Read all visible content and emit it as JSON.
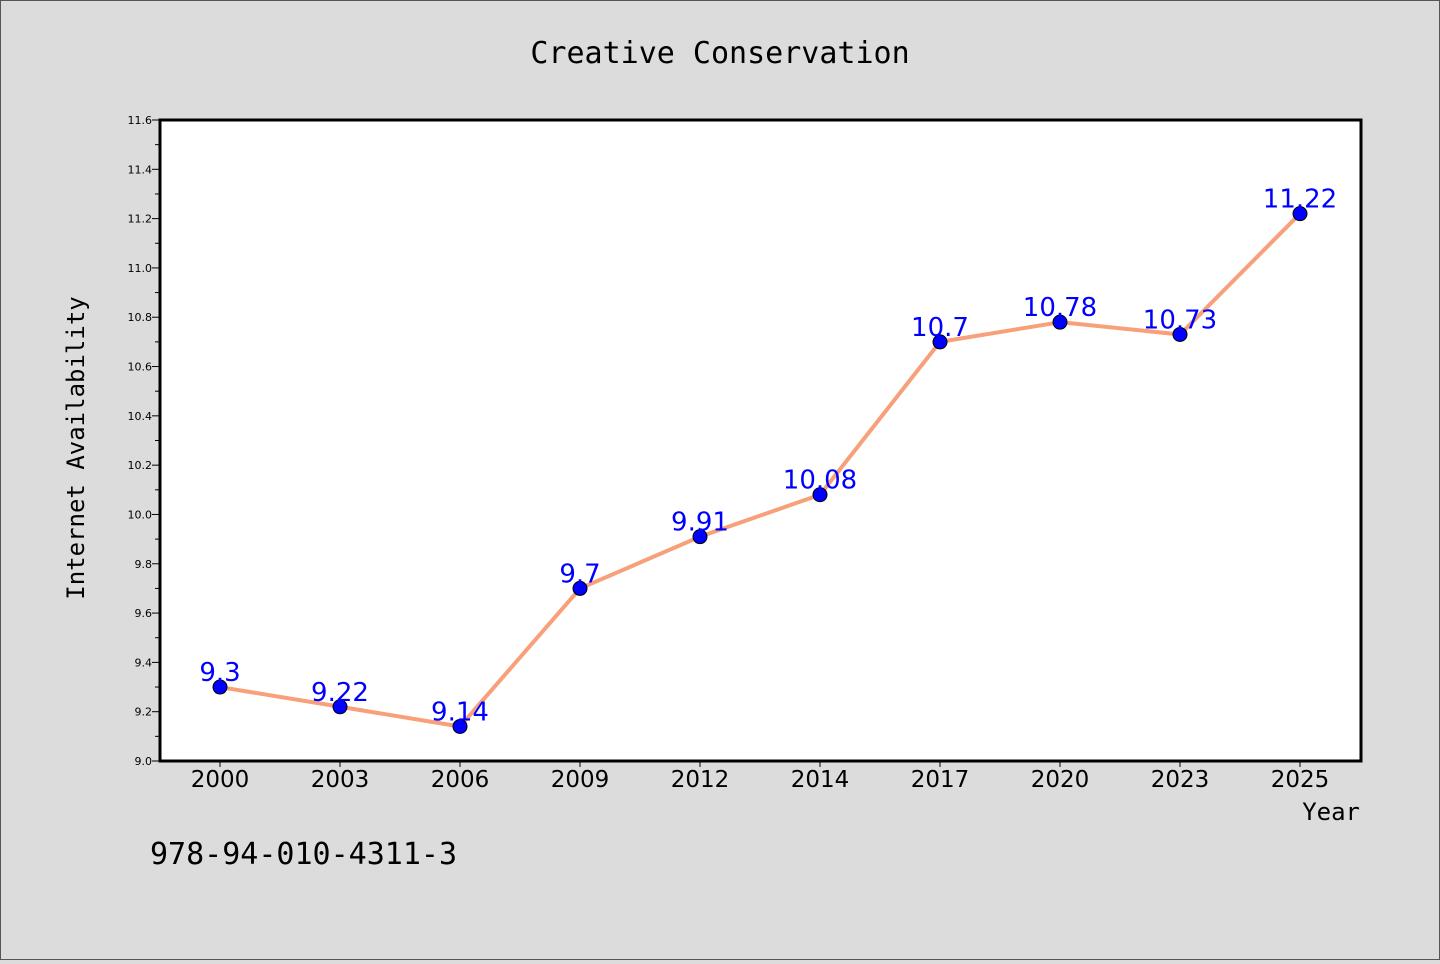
{
  "chart_data": {
    "type": "line",
    "title": "Creative Conservation",
    "xlabel": "Year",
    "ylabel": "Internet Availability",
    "categories": [
      "2000",
      "2003",
      "2006",
      "2009",
      "2012",
      "2014",
      "2017",
      "2020",
      "2023",
      "2025"
    ],
    "series": [
      {
        "values": [
          9.3,
          9.22,
          9.14,
          9.7,
          9.91,
          10.08,
          10.7,
          10.78,
          10.73,
          11.22
        ],
        "data_labels": [
          "9.3",
          "9.22",
          "9.14",
          "9.7",
          "9.91",
          "10.08",
          "10.7",
          "10.78",
          "10.73",
          "11.22"
        ],
        "line_color": "#f7a07a",
        "marker_color": "#0000ff"
      }
    ],
    "ylim": [
      9.0,
      11.6
    ],
    "yticks": [
      "9.0",
      "9.2",
      "9.4",
      "9.6",
      "9.8",
      "10.0",
      "10.2",
      "10.4",
      "10.6",
      "10.8",
      "11.0",
      "11.2",
      "11.4",
      "11.6"
    ],
    "grid": false,
    "legend": "none",
    "label_color": "#0000ff"
  },
  "footer_text": "978-94-010-4311-3",
  "colors": {
    "background": "#dcdcdc",
    "plot_background": "#ffffff"
  }
}
